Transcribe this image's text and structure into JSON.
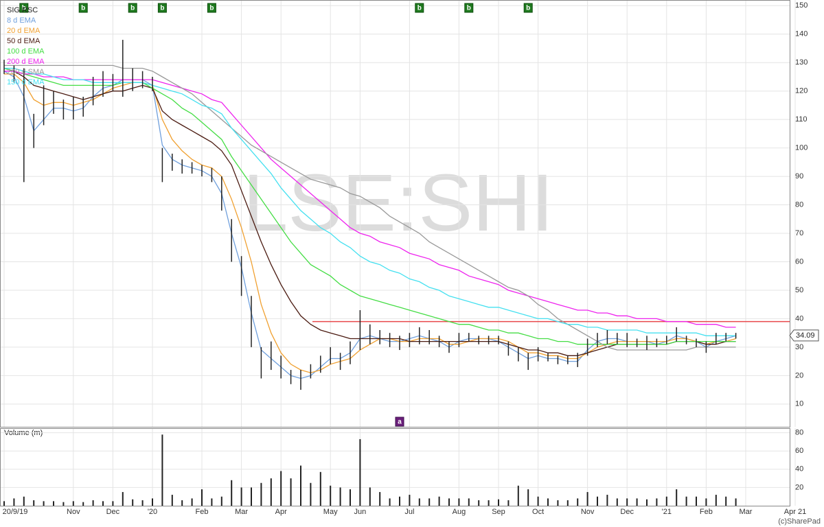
{
  "chart_data": {
    "type": "stock",
    "watermark": "LSE:SHI",
    "copyright": "(c)SharePad",
    "categories": [
      "20/9/19",
      null,
      null,
      null,
      null,
      null,
      null,
      "Nov",
      null,
      null,
      null,
      "Dec",
      null,
      null,
      null,
      "'20",
      null,
      null,
      null,
      null,
      "Feb",
      null,
      null,
      null,
      "Mar",
      null,
      null,
      null,
      "Apr",
      null,
      null,
      null,
      null,
      "May",
      null,
      null,
      "Jun",
      null,
      null,
      null,
      null,
      "Jul",
      null,
      null,
      null,
      null,
      "Aug",
      null,
      null,
      null,
      "Sep",
      null,
      null,
      null,
      "Oct",
      null,
      null,
      null,
      null,
      "Nov",
      null,
      null,
      null,
      "Dec",
      null,
      null,
      null,
      "'21",
      null,
      null,
      null,
      "Feb",
      null,
      null,
      null,
      "Mar",
      null,
      null,
      null,
      null,
      "Apr 21"
    ],
    "ylim": [
      2,
      152
    ],
    "yticks": [
      10,
      20,
      30,
      40,
      50,
      60,
      70,
      80,
      90,
      100,
      110,
      120,
      130,
      140,
      150
    ],
    "grid": true,
    "price": {
      "name": "SIG RSC",
      "color": "#222222",
      "high": [
        131,
        129,
        128,
        112,
        122,
        120,
        117,
        118,
        118,
        125,
        127,
        126,
        138,
        128,
        127,
        125,
        100,
        98,
        96,
        95,
        94,
        93,
        90,
        75,
        62,
        48,
        30,
        32,
        27,
        22,
        22,
        24,
        27,
        30,
        28,
        32,
        43,
        38,
        36,
        35,
        34,
        35,
        37,
        36,
        34,
        32,
        35,
        35,
        34,
        34,
        34,
        32,
        30,
        28,
        30,
        28,
        27,
        27,
        28,
        33,
        35,
        36,
        35,
        35,
        33,
        34,
        33,
        34,
        37,
        34,
        33,
        32,
        35,
        35,
        35,
        null,
        null,
        null,
        null,
        null,
        null
      ],
      "low": [
        126,
        123,
        88,
        100,
        108,
        112,
        110,
        110,
        111,
        115,
        118,
        120,
        118,
        120,
        121,
        120,
        88,
        92,
        91,
        91,
        90,
        88,
        78,
        60,
        48,
        30,
        19,
        22,
        19,
        17,
        15,
        19,
        21,
        24,
        22,
        24,
        29,
        31,
        31,
        30,
        29,
        30,
        31,
        31,
        30,
        28,
        30,
        32,
        31,
        31,
        31,
        27,
        25,
        22,
        25,
        25,
        24,
        24,
        23,
        27,
        30,
        31,
        31,
        30,
        30,
        29,
        30,
        31,
        32,
        31,
        30,
        28,
        31,
        32,
        33,
        null,
        null,
        null,
        null,
        null,
        null
      ]
    },
    "last_price": 34.09,
    "hline": {
      "value": 39,
      "color": "#e8474a"
    },
    "series": [
      {
        "name": "8 d EMA",
        "color": "#6f9fdc",
        "values": [
          127,
          125,
          118,
          106,
          110,
          114,
          114,
          113,
          114,
          118,
          121,
          122,
          124,
          124,
          124,
          122,
          101,
          96,
          94,
          93,
          92,
          90,
          84,
          70,
          58,
          42,
          29,
          26,
          23,
          20,
          19,
          20,
          23,
          26,
          26,
          28,
          33,
          34,
          33,
          32,
          32,
          33,
          34,
          33,
          32,
          30,
          32,
          33,
          33,
          33,
          32,
          30,
          28,
          26,
          27,
          26,
          26,
          25,
          25,
          29,
          32,
          33,
          33,
          32,
          32,
          32,
          31,
          32,
          34,
          33,
          32,
          30,
          32,
          33,
          34,
          null,
          null,
          null,
          null,
          null,
          null
        ]
      },
      {
        "name": "20 d EMA",
        "color": "#f0a030",
        "values": [
          126,
          126,
          123,
          117,
          115,
          116,
          116,
          115,
          116,
          117,
          119,
          121,
          122,
          123,
          123,
          122,
          110,
          103,
          99,
          96,
          94,
          93,
          90,
          82,
          72,
          60,
          45,
          35,
          28,
          24,
          22,
          21,
          22,
          24,
          25,
          26,
          29,
          31,
          33,
          33,
          32,
          32,
          33,
          33,
          33,
          31,
          31,
          32,
          33,
          33,
          33,
          32,
          30,
          28,
          28,
          27,
          27,
          26,
          26,
          28,
          30,
          31,
          32,
          32,
          32,
          32,
          32,
          32,
          33,
          33,
          32,
          31,
          32,
          32,
          33,
          null,
          null,
          null,
          null,
          null,
          null
        ]
      },
      {
        "name": "50 d EMA",
        "color": "#4a1a10",
        "values": [
          128,
          127,
          125,
          122,
          121,
          120,
          119,
          118,
          117,
          118,
          119,
          120,
          120,
          121,
          122,
          121,
          113,
          110,
          108,
          106,
          104,
          102,
          99,
          94,
          85,
          76,
          67,
          59,
          52,
          46,
          41,
          38,
          36,
          35,
          34,
          33,
          33,
          33,
          33,
          33,
          33,
          32,
          32,
          32,
          32,
          32,
          32,
          32,
          32,
          32,
          32,
          31,
          30,
          29,
          29,
          28,
          28,
          27,
          27,
          28,
          29,
          30,
          31,
          31,
          31,
          31,
          31,
          31,
          32,
          32,
          32,
          31,
          31,
          32,
          32,
          null,
          null,
          null,
          null,
          null,
          null
        ]
      },
      {
        "name": "100 d EMA",
        "color": "#44dd44",
        "values": [
          128,
          127,
          126,
          125,
          124,
          123,
          122,
          122,
          122,
          122,
          122,
          122,
          123,
          123,
          123,
          121,
          119,
          117,
          114,
          112,
          109,
          106,
          103,
          97,
          92,
          87,
          82,
          77,
          72,
          67,
          63,
          59,
          57,
          55,
          52,
          50,
          48,
          47,
          46,
          45,
          44,
          43,
          42,
          41,
          40,
          39,
          38,
          38,
          37,
          36,
          36,
          35,
          35,
          34,
          33,
          33,
          32,
          32,
          31,
          31,
          31,
          31,
          31,
          31,
          31,
          31,
          31,
          31,
          32,
          32,
          32,
          32,
          32,
          32,
          32,
          null,
          null,
          null,
          null,
          null,
          null
        ]
      },
      {
        "name": "200 d EMA",
        "color": "#ee22ee",
        "values": [
          127,
          127,
          126,
          126,
          125,
          125,
          125,
          124,
          124,
          124,
          124,
          124,
          124,
          124,
          124,
          124,
          123,
          122,
          121,
          120,
          119,
          117,
          116,
          112,
          108,
          104,
          100,
          96,
          93,
          90,
          87,
          84,
          81,
          78,
          75,
          72,
          70,
          69,
          67,
          66,
          65,
          63,
          62,
          61,
          59,
          58,
          57,
          55,
          54,
          53,
          52,
          50,
          49,
          48,
          47,
          46,
          45,
          44,
          43,
          43,
          42,
          42,
          41,
          41,
          40,
          40,
          40,
          39,
          39,
          39,
          38,
          38,
          38,
          37,
          37,
          null,
          null,
          null,
          null,
          null,
          null
        ]
      },
      {
        "name": "200 d SMA",
        "color": "#999999",
        "values": [
          129,
          129,
          129,
          129,
          129,
          129,
          129,
          129,
          129,
          129,
          129,
          129,
          128,
          128,
          128,
          127,
          125,
          123,
          121,
          119,
          116,
          113,
          110,
          107,
          104,
          101,
          99,
          97,
          95,
          93,
          91,
          89,
          88,
          87,
          86,
          84,
          83,
          81,
          79,
          76,
          74,
          72,
          70,
          67,
          65,
          63,
          61,
          59,
          57,
          55,
          53,
          51,
          50,
          48,
          45,
          43,
          40,
          38,
          36,
          34,
          32,
          30,
          29,
          29,
          29,
          29,
          29,
          29,
          29,
          29,
          30,
          30,
          30,
          30,
          30,
          null,
          null,
          null,
          null,
          null,
          null
        ]
      },
      {
        "name": "150 d EMA",
        "color": "#44e0f0",
        "values": [
          128,
          128,
          127,
          126,
          126,
          125,
          124,
          124,
          124,
          123,
          123,
          123,
          123,
          123,
          123,
          122,
          121,
          120,
          119,
          117,
          115,
          114,
          112,
          107,
          103,
          99,
          95,
          91,
          86,
          82,
          78,
          75,
          72,
          70,
          67,
          65,
          62,
          60,
          59,
          57,
          56,
          54,
          53,
          51,
          50,
          48,
          47,
          46,
          45,
          44,
          44,
          43,
          42,
          41,
          40,
          40,
          39,
          38,
          38,
          37,
          37,
          36,
          36,
          36,
          36,
          35,
          35,
          35,
          35,
          35,
          35,
          34,
          34,
          34,
          34,
          null,
          null,
          null,
          null,
          null,
          null
        ]
      }
    ],
    "signals": [
      null,
      null,
      "b",
      null,
      null,
      null,
      null,
      null,
      "b",
      null,
      null,
      null,
      null,
      "b",
      null,
      null,
      "b",
      null,
      null,
      null,
      null,
      "b",
      null,
      null,
      null,
      null,
      null,
      null,
      null,
      null,
      null,
      null,
      null,
      null,
      null,
      null,
      null,
      null,
      null,
      null,
      null,
      null,
      "b",
      null,
      null,
      null,
      null,
      "b",
      null,
      null,
      null,
      null,
      null,
      "b",
      null,
      null,
      null,
      null,
      null,
      null,
      null,
      null,
      null,
      null,
      null,
      null,
      null,
      null,
      null,
      null,
      null,
      null,
      null,
      null,
      null,
      null,
      null,
      null,
      null,
      null,
      null
    ],
    "alerts": [
      null,
      null,
      null,
      null,
      null,
      null,
      null,
      null,
      null,
      null,
      null,
      null,
      null,
      null,
      null,
      null,
      null,
      null,
      null,
      null,
      null,
      null,
      null,
      null,
      null,
      null,
      null,
      null,
      null,
      null,
      null,
      null,
      null,
      null,
      null,
      null,
      null,
      null,
      null,
      null,
      "a",
      null,
      null,
      null,
      null,
      null,
      null,
      null,
      null,
      null,
      null,
      null,
      null,
      null,
      null,
      null,
      null,
      null,
      null,
      null,
      null,
      null,
      null,
      null,
      null,
      null,
      null,
      null,
      null,
      null,
      null,
      null,
      null,
      null,
      null,
      null,
      null,
      null,
      null,
      null,
      null
    ],
    "volume": {
      "name": "Volume (m)",
      "color": "#222222",
      "ylim": [
        0,
        85
      ],
      "yticks": [
        20,
        40,
        60,
        80
      ],
      "values": [
        5,
        8,
        10,
        6,
        5,
        5,
        4,
        5,
        4,
        6,
        5,
        5,
        15,
        7,
        6,
        8,
        78,
        12,
        6,
        8,
        18,
        8,
        10,
        28,
        20,
        20,
        25,
        30,
        38,
        30,
        44,
        25,
        37,
        22,
        20,
        18,
        73,
        20,
        15,
        8,
        10,
        12,
        8,
        8,
        10,
        8,
        8,
        8,
        6,
        6,
        7,
        6,
        22,
        18,
        10,
        8,
        6,
        6,
        8,
        15,
        10,
        12,
        8,
        8,
        8,
        7,
        8,
        10,
        18,
        10,
        10,
        8,
        12,
        10,
        8,
        null,
        null,
        null,
        null,
        null,
        null
      ]
    }
  }
}
